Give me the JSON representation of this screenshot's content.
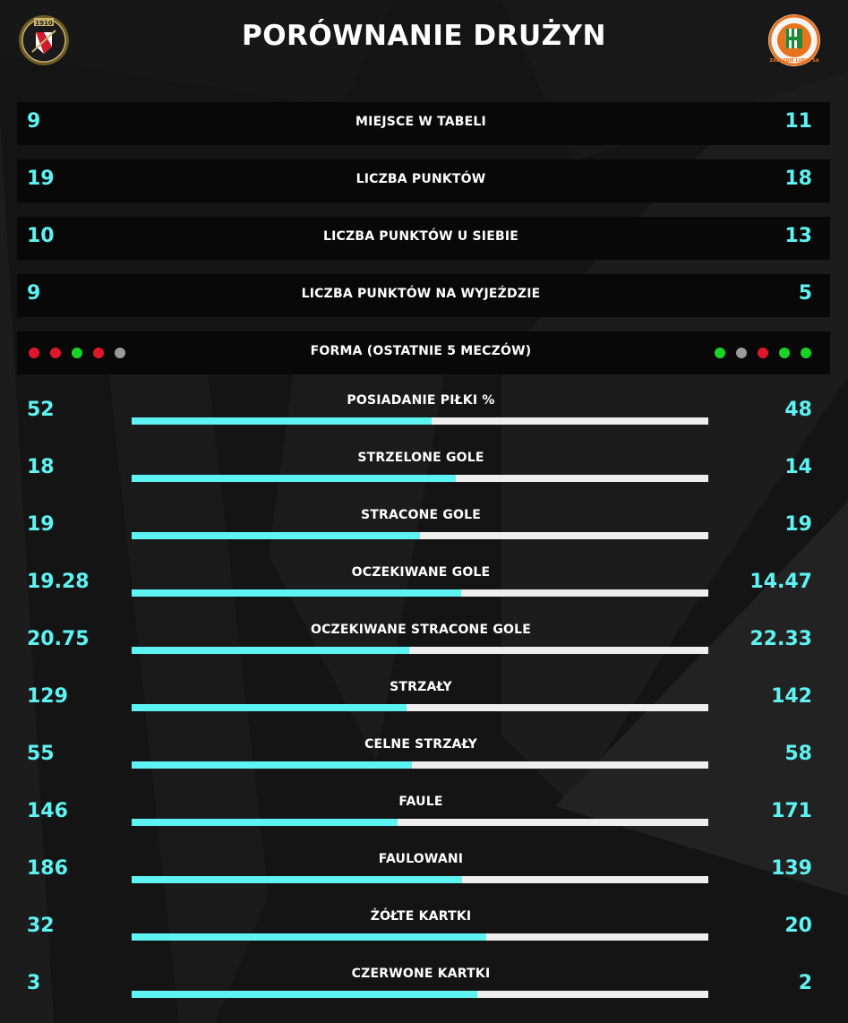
{
  "page": {
    "title": "PORÓWNANIE DRUŻYN"
  },
  "crests": {
    "home": {
      "icon": "widzew-crest-icon",
      "year": "1910"
    },
    "away": {
      "icon": "zaglebie-crest-icon",
      "text": "ZAGŁĘBIE LUBIN SA"
    }
  },
  "colors": {
    "accent": "#5ef3f3",
    "bar_track": "#eeeeee",
    "form_win": "#19d426",
    "form_loss": "#e0162b",
    "form_draw": "#9a9a9a"
  },
  "text_stats": [
    {
      "label": "MIEJSCE W TABELI",
      "home": "9",
      "away": "11"
    },
    {
      "label": "LICZBA PUNKTÓW",
      "home": "19",
      "away": "18"
    },
    {
      "label": "LICZBA PUNKTÓW U SIEBIE",
      "home": "10",
      "away": "13"
    },
    {
      "label": "LICZBA PUNKTÓW NA WYJEŹDZIE",
      "home": "9",
      "away": "5"
    }
  ],
  "form": {
    "label": "FORMA (OSTATNIE 5 MECZÓW)",
    "home": [
      "L",
      "L",
      "W",
      "L",
      "D"
    ],
    "away": [
      "W",
      "D",
      "L",
      "W",
      "W"
    ]
  },
  "bar_stats": [
    {
      "label": "POSIADANIE PIŁKI %",
      "home": "52",
      "away": "48"
    },
    {
      "label": "STRZELONE GOLE",
      "home": "18",
      "away": "14"
    },
    {
      "label": "STRACONE GOLE",
      "home": "19",
      "away": "19"
    },
    {
      "label": "OCZEKIWANE GOLE",
      "home": "19.28",
      "away": "14.47"
    },
    {
      "label": "OCZEKIWANE STRACONE GOLE",
      "home": "20.75",
      "away": "22.33"
    },
    {
      "label": "STRZAŁY",
      "home": "129",
      "away": "142"
    },
    {
      "label": "CELNE STRZAŁY",
      "home": "55",
      "away": "58"
    },
    {
      "label": "FAULE",
      "home": "146",
      "away": "171"
    },
    {
      "label": "FAULOWANI",
      "home": "186",
      "away": "139"
    },
    {
      "label": "ŻÓŁTE KARTKI",
      "home": "32",
      "away": "20"
    },
    {
      "label": "CZERWONE KARTKI",
      "home": "3",
      "away": "2"
    }
  ]
}
